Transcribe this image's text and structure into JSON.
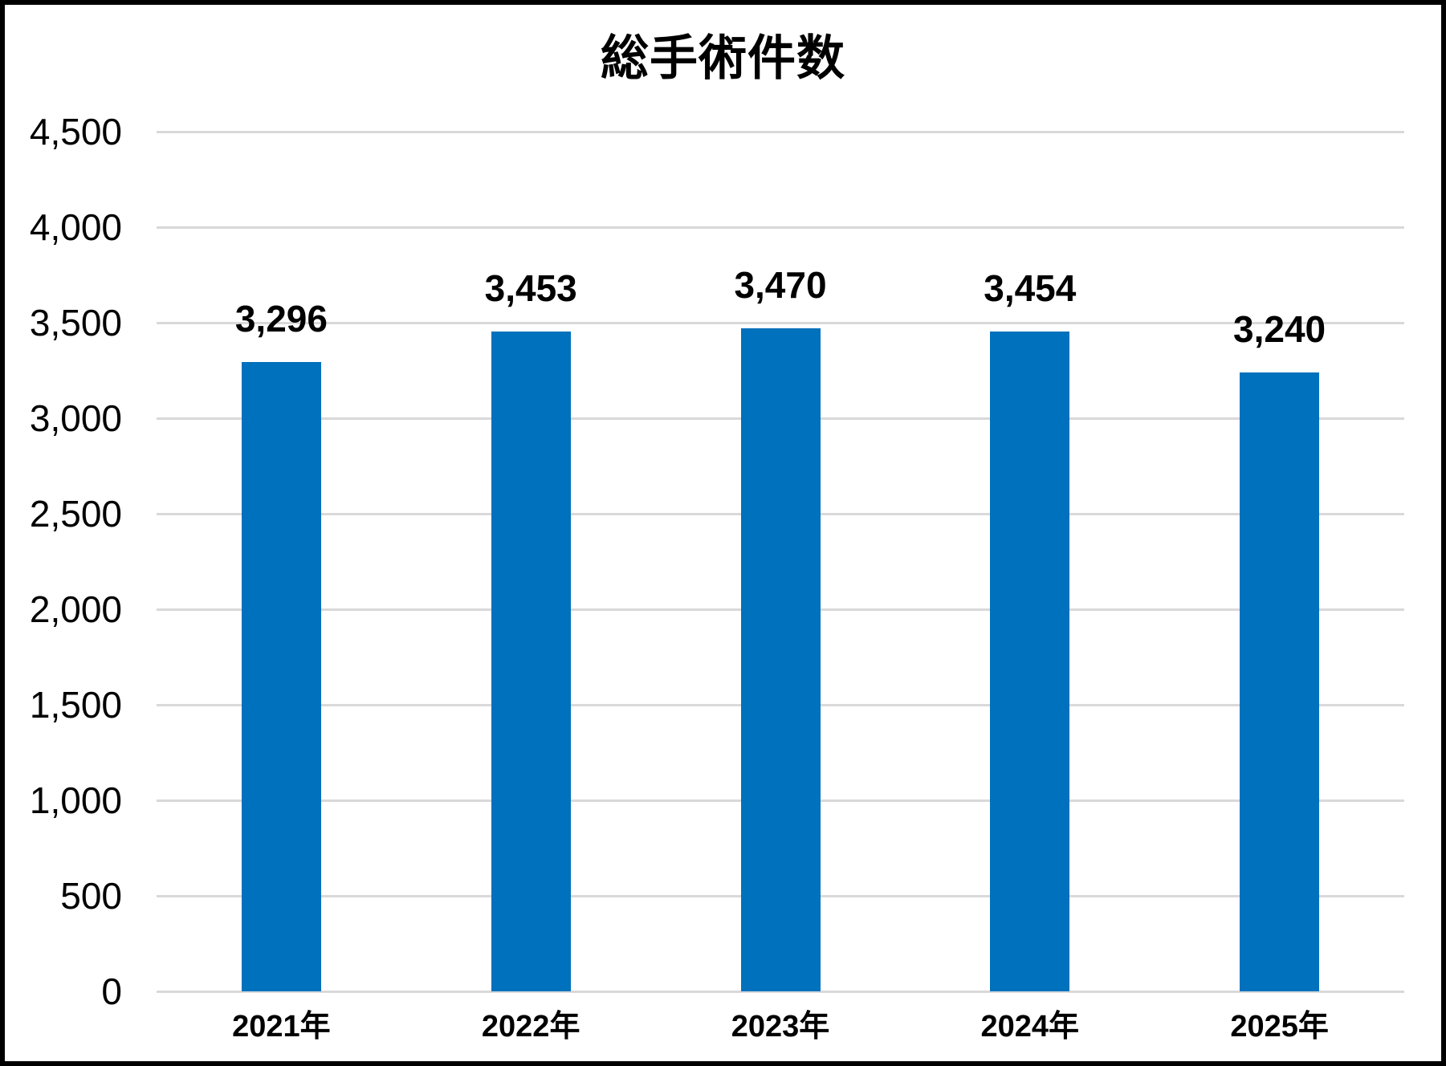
{
  "chart_data": {
    "type": "bar",
    "title": "総手術件数",
    "categories": [
      "2021年",
      "2022年",
      "2023年",
      "2024年",
      "2025年"
    ],
    "values": [
      3296,
      3453,
      3470,
      3454,
      3240
    ],
    "value_labels": [
      "3,296",
      "3,453",
      "3,470",
      "3,454",
      "3,240"
    ],
    "y_ticks": [
      0,
      500,
      1000,
      1500,
      2000,
      2500,
      3000,
      3500,
      4000,
      4500
    ],
    "y_tick_labels": [
      "0",
      "500",
      "1,000",
      "1,500",
      "2,000",
      "2,500",
      "3,000",
      "3,500",
      "4,000",
      "4,500"
    ],
    "ylim": [
      0,
      4500
    ],
    "xlabel": "",
    "ylabel": "",
    "grid": true,
    "legend_position": "none",
    "bar_color": "#0071BC",
    "gridline_color": "#D9D9D9",
    "text_color": "#000000",
    "background_color": "#FFFFFF",
    "frame_color": "#000000"
  }
}
